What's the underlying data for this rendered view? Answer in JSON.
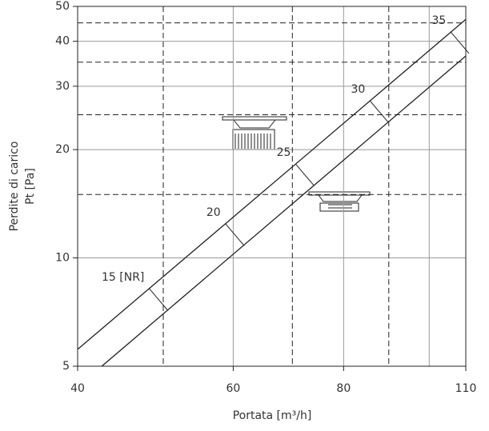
{
  "chart_data": {
    "type": "line",
    "x_log": true,
    "y_log": true,
    "xlabel": "Portata [m³/h]",
    "ylabel": [
      "Perdite di carico",
      "Pt [Pa]"
    ],
    "xlim": [
      40,
      110
    ],
    "ylim": [
      5,
      50
    ],
    "xticks": [
      40,
      60,
      80,
      110
    ],
    "yticks": [
      5,
      10,
      20,
      30,
      40,
      50
    ],
    "xgrid": [
      60,
      80,
      100
    ],
    "ygrid": [
      10,
      20,
      30,
      40
    ],
    "dashed_x": [
      50,
      70,
      90
    ],
    "dashed_y": [
      15,
      25,
      35,
      45
    ],
    "series": [
      {
        "name": "upper",
        "color": "#222",
        "x": [
          40,
          110
        ],
        "values": [
          5.57,
          46
        ]
      },
      {
        "name": "lower",
        "color": "#222",
        "x": [
          42.6,
          110
        ],
        "values": [
          5,
          36.4
        ]
      }
    ],
    "annotations": [
      {
        "text": "15 [NR]",
        "x": 48.2
      },
      {
        "text": "20",
        "x": 58.8
      },
      {
        "text": "25",
        "x": 70.6
      },
      {
        "text": "30",
        "x": 85.7
      },
      {
        "text": "35",
        "x": 105.8
      }
    ]
  }
}
